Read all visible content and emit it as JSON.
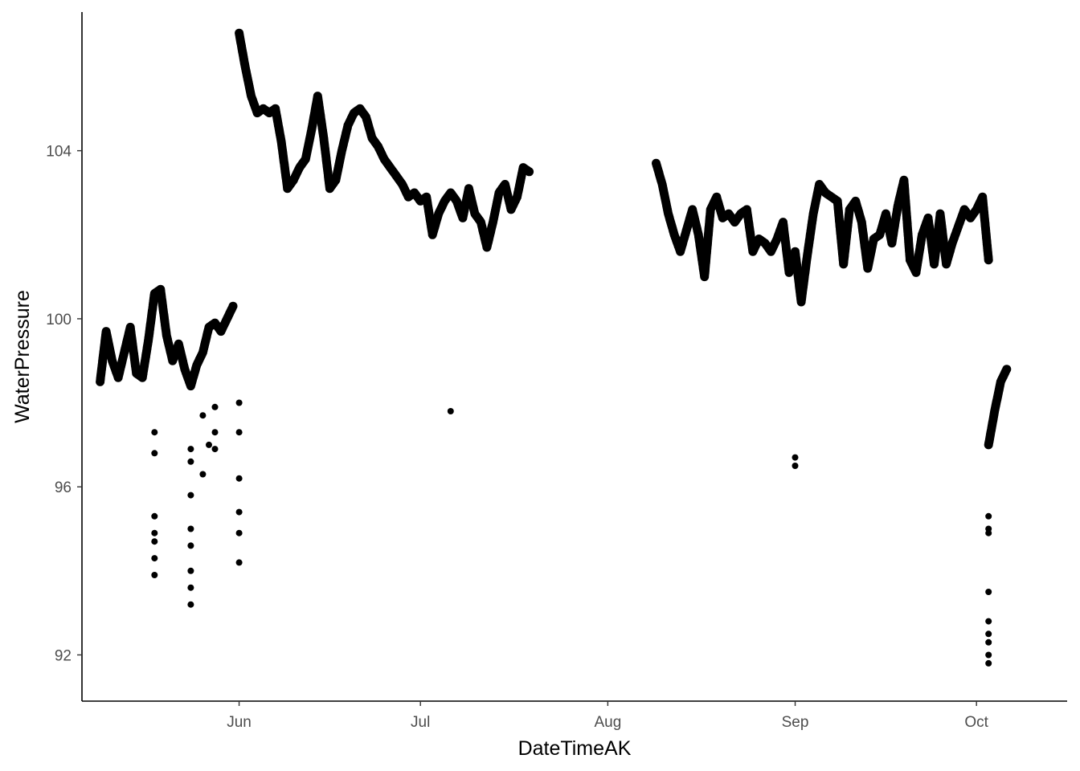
{
  "chart_data": {
    "type": "scatter",
    "title": "",
    "xlabel": "DateTimeAK",
    "ylabel": "WaterPressure",
    "x_ticks": [
      "Jun",
      "Jul",
      "Aug",
      "Sep",
      "Oct"
    ],
    "x_tick_dates": [
      "2023-06-01",
      "2023-07-01",
      "2023-08-01",
      "2023-09-01",
      "2023-10-01"
    ],
    "xlim": [
      "2023-05-06",
      "2023-10-16"
    ],
    "y_ticks": [
      92,
      96,
      100,
      104
    ],
    "ylim": [
      90.9,
      107.3
    ],
    "grid": false,
    "legend": "none",
    "point_color": "#000000",
    "series": [
      {
        "values": [
          [
            "2023-05-09",
            98.5
          ],
          [
            "2023-05-10",
            99.7
          ],
          [
            "2023-05-11",
            99.0
          ],
          [
            "2023-05-12",
            98.6
          ],
          [
            "2023-05-13",
            99.2
          ],
          [
            "2023-05-14",
            99.8
          ],
          [
            "2023-05-15",
            98.7
          ],
          [
            "2023-05-16",
            98.6
          ],
          [
            "2023-05-17",
            99.5
          ],
          [
            "2023-05-18",
            100.6
          ],
          [
            "2023-05-19",
            100.7
          ],
          [
            "2023-05-20",
            99.6
          ],
          [
            "2023-05-21",
            99.0
          ],
          [
            "2023-05-22",
            99.4
          ],
          [
            "2023-05-23",
            98.8
          ],
          [
            "2023-05-24",
            98.4
          ],
          [
            "2023-05-25",
            98.9
          ],
          [
            "2023-05-26",
            99.2
          ],
          [
            "2023-05-27",
            99.8
          ],
          [
            "2023-05-28",
            99.9
          ],
          [
            "2023-05-29",
            99.7
          ],
          [
            "2023-05-30",
            100.0
          ],
          [
            "2023-05-31",
            100.3
          ],
          [
            "2023-06-01",
            106.8
          ],
          [
            "2023-06-02",
            106.0
          ],
          [
            "2023-06-03",
            105.3
          ],
          [
            "2023-06-04",
            104.9
          ],
          [
            "2023-06-05",
            105.0
          ],
          [
            "2023-06-06",
            104.9
          ],
          [
            "2023-06-07",
            105.0
          ],
          [
            "2023-06-08",
            104.2
          ],
          [
            "2023-06-09",
            103.1
          ],
          [
            "2023-06-10",
            103.3
          ],
          [
            "2023-06-11",
            103.6
          ],
          [
            "2023-06-12",
            103.8
          ],
          [
            "2023-06-13",
            104.5
          ],
          [
            "2023-06-14",
            105.3
          ],
          [
            "2023-06-15",
            104.3
          ],
          [
            "2023-06-16",
            103.1
          ],
          [
            "2023-06-17",
            103.3
          ],
          [
            "2023-06-18",
            104.0
          ],
          [
            "2023-06-19",
            104.6
          ],
          [
            "2023-06-20",
            104.9
          ],
          [
            "2023-06-21",
            105.0
          ],
          [
            "2023-06-22",
            104.8
          ],
          [
            "2023-06-23",
            104.3
          ],
          [
            "2023-06-24",
            104.1
          ],
          [
            "2023-06-25",
            103.8
          ],
          [
            "2023-06-26",
            103.6
          ],
          [
            "2023-06-27",
            103.4
          ],
          [
            "2023-06-28",
            103.2
          ],
          [
            "2023-06-29",
            102.9
          ],
          [
            "2023-06-30",
            103.0
          ],
          [
            "2023-07-01",
            102.8
          ],
          [
            "2023-07-02",
            102.9
          ],
          [
            "2023-07-03",
            102.0
          ],
          [
            "2023-07-04",
            102.5
          ],
          [
            "2023-07-05",
            102.8
          ],
          [
            "2023-07-06",
            103.0
          ],
          [
            "2023-07-07",
            102.8
          ],
          [
            "2023-07-08",
            102.4
          ],
          [
            "2023-07-09",
            103.1
          ],
          [
            "2023-07-10",
            102.5
          ],
          [
            "2023-07-11",
            102.3
          ],
          [
            "2023-07-12",
            101.7
          ],
          [
            "2023-07-13",
            102.3
          ],
          [
            "2023-07-14",
            103.0
          ],
          [
            "2023-07-15",
            103.2
          ],
          [
            "2023-07-16",
            102.6
          ],
          [
            "2023-07-17",
            102.9
          ],
          [
            "2023-07-18",
            103.6
          ],
          [
            "2023-07-19",
            103.5
          ],
          [
            "2023-08-09",
            103.7
          ],
          [
            "2023-08-10",
            103.2
          ],
          [
            "2023-08-11",
            102.5
          ],
          [
            "2023-08-12",
            102.0
          ],
          [
            "2023-08-13",
            101.6
          ],
          [
            "2023-08-14",
            102.1
          ],
          [
            "2023-08-15",
            102.6
          ],
          [
            "2023-08-16",
            102.0
          ],
          [
            "2023-08-17",
            101.0
          ],
          [
            "2023-08-18",
            102.6
          ],
          [
            "2023-08-19",
            102.9
          ],
          [
            "2023-08-20",
            102.4
          ],
          [
            "2023-08-21",
            102.5
          ],
          [
            "2023-08-22",
            102.3
          ],
          [
            "2023-08-23",
            102.5
          ],
          [
            "2023-08-24",
            102.6
          ],
          [
            "2023-08-25",
            101.6
          ],
          [
            "2023-08-26",
            101.9
          ],
          [
            "2023-08-27",
            101.8
          ],
          [
            "2023-08-28",
            101.6
          ],
          [
            "2023-08-29",
            101.9
          ],
          [
            "2023-08-30",
            102.3
          ],
          [
            "2023-08-31",
            101.1
          ],
          [
            "2023-09-01",
            101.6
          ],
          [
            "2023-09-02",
            100.4
          ],
          [
            "2023-09-03",
            101.5
          ],
          [
            "2023-09-04",
            102.5
          ],
          [
            "2023-09-05",
            103.2
          ],
          [
            "2023-09-06",
            103.0
          ],
          [
            "2023-09-07",
            102.9
          ],
          [
            "2023-09-08",
            102.8
          ],
          [
            "2023-09-09",
            101.3
          ],
          [
            "2023-09-10",
            102.6
          ],
          [
            "2023-09-11",
            102.8
          ],
          [
            "2023-09-12",
            102.3
          ],
          [
            "2023-09-13",
            101.2
          ],
          [
            "2023-09-14",
            101.9
          ],
          [
            "2023-09-15",
            102.0
          ],
          [
            "2023-09-16",
            102.5
          ],
          [
            "2023-09-17",
            101.8
          ],
          [
            "2023-09-18",
            102.7
          ],
          [
            "2023-09-19",
            103.3
          ],
          [
            "2023-09-20",
            101.4
          ],
          [
            "2023-09-21",
            101.1
          ],
          [
            "2023-09-22",
            102.0
          ],
          [
            "2023-09-23",
            102.4
          ],
          [
            "2023-09-24",
            101.3
          ],
          [
            "2023-09-25",
            102.5
          ],
          [
            "2023-09-26",
            101.3
          ],
          [
            "2023-09-27",
            101.8
          ],
          [
            "2023-09-28",
            102.2
          ],
          [
            "2023-09-29",
            102.6
          ],
          [
            "2023-09-30",
            102.4
          ],
          [
            "2023-10-01",
            102.6
          ],
          [
            "2023-10-02",
            102.9
          ],
          [
            "2023-10-03",
            101.4
          ],
          [
            "2023-10-03",
            97.0
          ],
          [
            "2023-10-04",
            97.8
          ],
          [
            "2023-10-05",
            98.5
          ],
          [
            "2023-10-06",
            98.8
          ]
        ]
      },
      {
        "values": [
          [
            "2023-05-18",
            97.3
          ],
          [
            "2023-05-18",
            96.8
          ],
          [
            "2023-05-18",
            95.3
          ],
          [
            "2023-05-18",
            94.9
          ],
          [
            "2023-05-18",
            94.7
          ],
          [
            "2023-05-18",
            94.3
          ],
          [
            "2023-05-18",
            93.9
          ],
          [
            "2023-05-24",
            96.9
          ],
          [
            "2023-05-24",
            96.6
          ],
          [
            "2023-05-24",
            95.8
          ],
          [
            "2023-05-24",
            95.0
          ],
          [
            "2023-05-24",
            94.6
          ],
          [
            "2023-05-24",
            94.0
          ],
          [
            "2023-05-24",
            93.6
          ],
          [
            "2023-05-24",
            93.2
          ],
          [
            "2023-05-26",
            97.7
          ],
          [
            "2023-05-26",
            96.3
          ],
          [
            "2023-05-27",
            97.0
          ],
          [
            "2023-05-28",
            97.9
          ],
          [
            "2023-05-28",
            97.3
          ],
          [
            "2023-05-28",
            96.9
          ],
          [
            "2023-06-01",
            98.0
          ],
          [
            "2023-06-01",
            97.3
          ],
          [
            "2023-06-01",
            96.2
          ],
          [
            "2023-06-01",
            95.4
          ],
          [
            "2023-06-01",
            94.9
          ],
          [
            "2023-06-01",
            94.2
          ],
          [
            "2023-07-06",
            97.8
          ],
          [
            "2023-09-01",
            96.7
          ],
          [
            "2023-09-01",
            96.5
          ],
          [
            "2023-10-03",
            95.3
          ],
          [
            "2023-10-03",
            95.0
          ],
          [
            "2023-10-03",
            94.9
          ],
          [
            "2023-10-03",
            93.5
          ],
          [
            "2023-10-03",
            92.8
          ],
          [
            "2023-10-03",
            92.5
          ],
          [
            "2023-10-03",
            92.3
          ],
          [
            "2023-10-03",
            92.0
          ],
          [
            "2023-10-03",
            91.8
          ]
        ]
      }
    ]
  }
}
